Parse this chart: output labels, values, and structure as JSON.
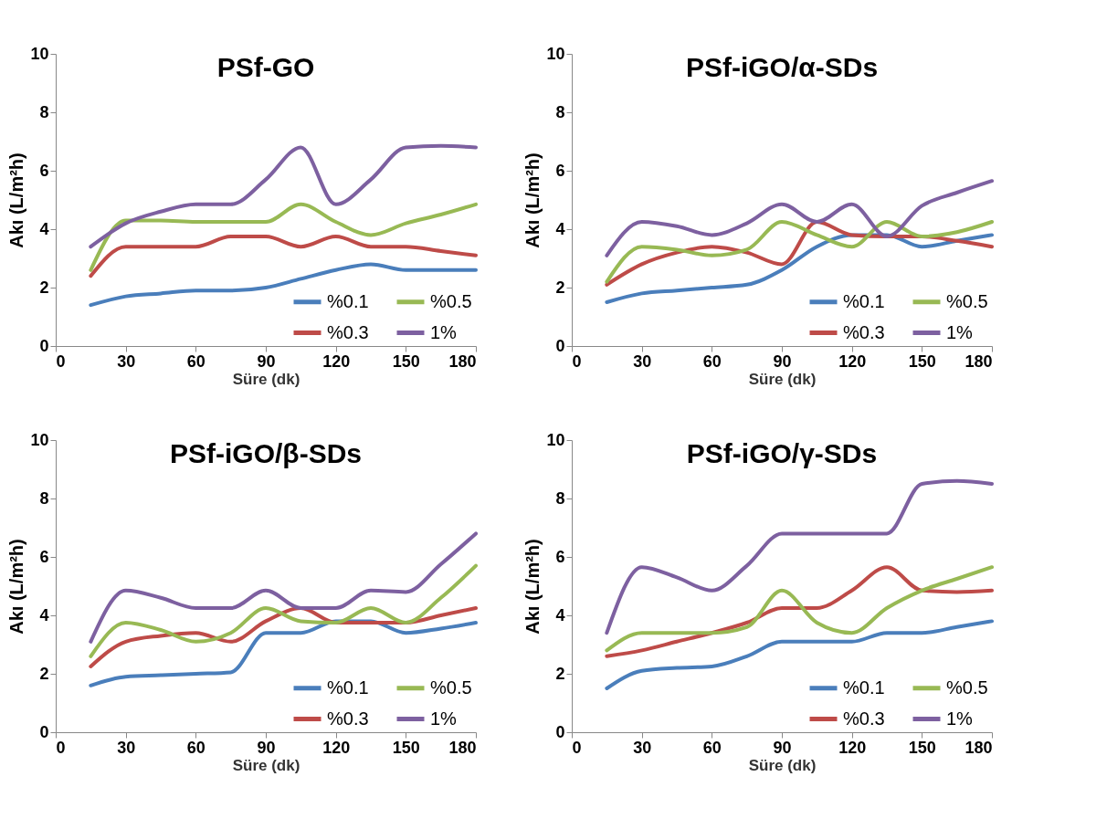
{
  "chart_data": [
    {
      "type": "line",
      "title": "PSf-GO",
      "xlabel": "Süre (dk)",
      "ylabel": "Akı (L/m²h)",
      "x": [
        15,
        30,
        45,
        60,
        75,
        90,
        105,
        120,
        135,
        150,
        165,
        180
      ],
      "xlim": [
        0,
        180
      ],
      "xticks": [
        0,
        30,
        60,
        90,
        120,
        150,
        180
      ],
      "ylim": [
        0,
        10
      ],
      "yticks": [
        0,
        2,
        4,
        6,
        8,
        10
      ],
      "legend": "bottom right",
      "series": [
        {
          "name": "%0.1",
          "color": "#4a7ebb",
          "values": [
            1.4,
            1.7,
            1.8,
            1.9,
            1.9,
            2.0,
            2.3,
            2.6,
            2.8,
            2.6,
            2.6,
            2.6
          ]
        },
        {
          "name": "%0.3",
          "color": "#be4b48",
          "values": [
            2.4,
            3.4,
            3.4,
            3.4,
            3.75,
            3.75,
            3.4,
            3.75,
            3.4,
            3.4,
            3.25,
            3.1
          ]
        },
        {
          "name": "%0.5",
          "color": "#98b954",
          "values": [
            2.6,
            4.3,
            4.3,
            4.25,
            4.25,
            4.25,
            4.85,
            4.25,
            3.8,
            4.2,
            4.5,
            4.85
          ]
        },
        {
          "name": "1%",
          "color": "#7d60a0",
          "values": [
            3.4,
            4.2,
            4.6,
            4.85,
            4.85,
            5.7,
            6.8,
            4.85,
            5.7,
            6.8,
            6.85,
            6.8
          ]
        }
      ]
    },
    {
      "type": "line",
      "title": "PSf-iGO/α-SDs",
      "xlabel": "Süre (dk)",
      "ylabel": "Akı (L/m²h)",
      "x": [
        15,
        30,
        45,
        60,
        75,
        90,
        105,
        120,
        135,
        150,
        165,
        180
      ],
      "xlim": [
        0,
        180
      ],
      "xticks": [
        0,
        30,
        60,
        90,
        120,
        150,
        180
      ],
      "ylim": [
        0,
        10
      ],
      "yticks": [
        0,
        2,
        4,
        6,
        8,
        10
      ],
      "legend": "bottom right",
      "series": [
        {
          "name": "%0.1",
          "color": "#4a7ebb",
          "values": [
            1.5,
            1.8,
            1.9,
            2.0,
            2.1,
            2.6,
            3.4,
            3.8,
            3.8,
            3.4,
            3.6,
            3.8
          ]
        },
        {
          "name": "%0.3",
          "color": "#be4b48",
          "values": [
            2.1,
            2.8,
            3.2,
            3.4,
            3.2,
            2.8,
            4.25,
            3.8,
            3.75,
            3.75,
            3.6,
            3.4
          ]
        },
        {
          "name": "%0.5",
          "color": "#98b954",
          "values": [
            2.2,
            3.4,
            3.3,
            3.1,
            3.3,
            4.25,
            3.8,
            3.4,
            4.25,
            3.75,
            3.9,
            4.25
          ]
        },
        {
          "name": "1%",
          "color": "#7d60a0",
          "values": [
            3.1,
            4.25,
            4.1,
            3.8,
            4.2,
            4.85,
            4.25,
            4.85,
            3.75,
            4.8,
            5.25,
            5.65
          ]
        }
      ]
    },
    {
      "type": "line",
      "title": "PSf-iGO/β-SDs",
      "xlabel": "Süre (dk)",
      "ylabel": "Akı (L/m²h)",
      "x": [
        15,
        30,
        45,
        60,
        75,
        90,
        105,
        120,
        135,
        150,
        165,
        180
      ],
      "xlim": [
        0,
        180
      ],
      "xticks": [
        0,
        30,
        60,
        90,
        120,
        150,
        180
      ],
      "ylim": [
        0,
        10
      ],
      "yticks": [
        0,
        2,
        4,
        6,
        8,
        10
      ],
      "legend": "bottom right",
      "series": [
        {
          "name": "%0.1",
          "color": "#4a7ebb",
          "values": [
            1.6,
            1.9,
            1.95,
            2.0,
            2.05,
            3.4,
            3.4,
            3.8,
            3.8,
            3.4,
            3.55,
            3.75
          ]
        },
        {
          "name": "%0.3",
          "color": "#be4b48",
          "values": [
            2.25,
            3.1,
            3.3,
            3.4,
            3.1,
            3.8,
            4.25,
            3.75,
            3.75,
            3.75,
            4.0,
            4.25
          ]
        },
        {
          "name": "%0.5",
          "color": "#98b954",
          "values": [
            2.6,
            3.75,
            3.5,
            3.1,
            3.4,
            4.25,
            3.8,
            3.75,
            4.25,
            3.75,
            4.6,
            5.7
          ]
        },
        {
          "name": "1%",
          "color": "#7d60a0",
          "values": [
            3.1,
            4.85,
            4.6,
            4.25,
            4.25,
            4.85,
            4.25,
            4.25,
            4.85,
            4.8,
            5.75,
            6.8
          ]
        }
      ]
    },
    {
      "type": "line",
      "title": "PSf-iGO/γ-SDs",
      "xlabel": "Süre (dk)",
      "ylabel": "Akı (L/m²h)",
      "x": [
        15,
        30,
        45,
        60,
        75,
        90,
        105,
        120,
        135,
        150,
        165,
        180
      ],
      "xlim": [
        0,
        180
      ],
      "xticks": [
        0,
        30,
        60,
        90,
        120,
        150,
        180
      ],
      "ylim": [
        0,
        10
      ],
      "yticks": [
        0,
        2,
        4,
        6,
        8,
        10
      ],
      "legend": "bottom right",
      "series": [
        {
          "name": "%0.1",
          "color": "#4a7ebb",
          "values": [
            1.5,
            2.1,
            2.2,
            2.25,
            2.6,
            3.1,
            3.1,
            3.1,
            3.4,
            3.4,
            3.6,
            3.8
          ]
        },
        {
          "name": "%0.3",
          "color": "#be4b48",
          "values": [
            2.6,
            2.8,
            3.1,
            3.4,
            3.75,
            4.25,
            4.25,
            4.85,
            5.65,
            4.85,
            4.8,
            4.85
          ]
        },
        {
          "name": "%0.5",
          "color": "#98b954",
          "values": [
            2.8,
            3.4,
            3.4,
            3.4,
            3.6,
            4.85,
            3.75,
            3.4,
            4.25,
            4.85,
            5.25,
            5.65
          ]
        },
        {
          "name": "1%",
          "color": "#7d60a0",
          "values": [
            3.4,
            5.65,
            5.3,
            4.85,
            5.7,
            6.8,
            6.8,
            6.8,
            6.8,
            8.5,
            8.6,
            8.5
          ]
        }
      ]
    }
  ]
}
